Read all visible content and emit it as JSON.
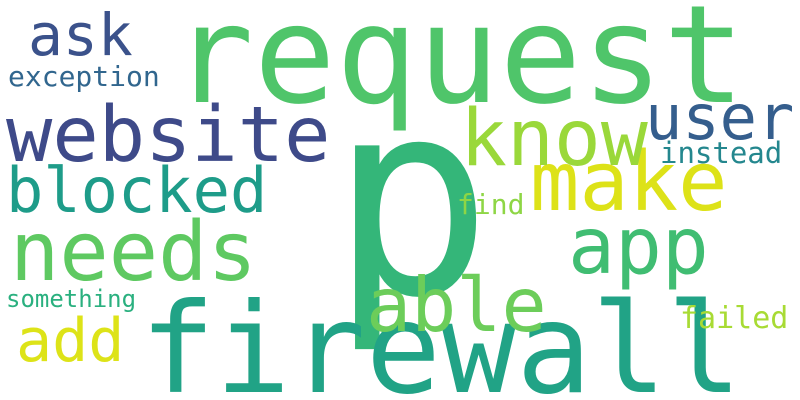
{
  "words": [
    {
      "text": "request",
      "color": "#4fc56a"
    },
    {
      "text": "p",
      "color": "#34b679"
    },
    {
      "text": "firewall",
      "color": "#21a386"
    },
    {
      "text": "website",
      "color": "#3e4a89"
    },
    {
      "text": "make",
      "color": "#dde218"
    },
    {
      "text": "needs",
      "color": "#5ec961"
    },
    {
      "text": "know",
      "color": "#9ad83a"
    },
    {
      "text": "blocked",
      "color": "#1e9c89"
    },
    {
      "text": "user",
      "color": "#355e8d"
    },
    {
      "text": "app",
      "color": "#40bd72"
    },
    {
      "text": "able",
      "color": "#6ccd5a"
    },
    {
      "text": "ask",
      "color": "#3b528b"
    },
    {
      "text": "add",
      "color": "#dde318"
    },
    {
      "text": "exception",
      "color": "#31668e"
    },
    {
      "text": "instead",
      "color": "#24878e"
    },
    {
      "text": "find",
      "color": "#8ed645"
    },
    {
      "text": "something",
      "color": "#2ab07f"
    },
    {
      "text": "failed",
      "color": "#a8db34"
    }
  ]
}
